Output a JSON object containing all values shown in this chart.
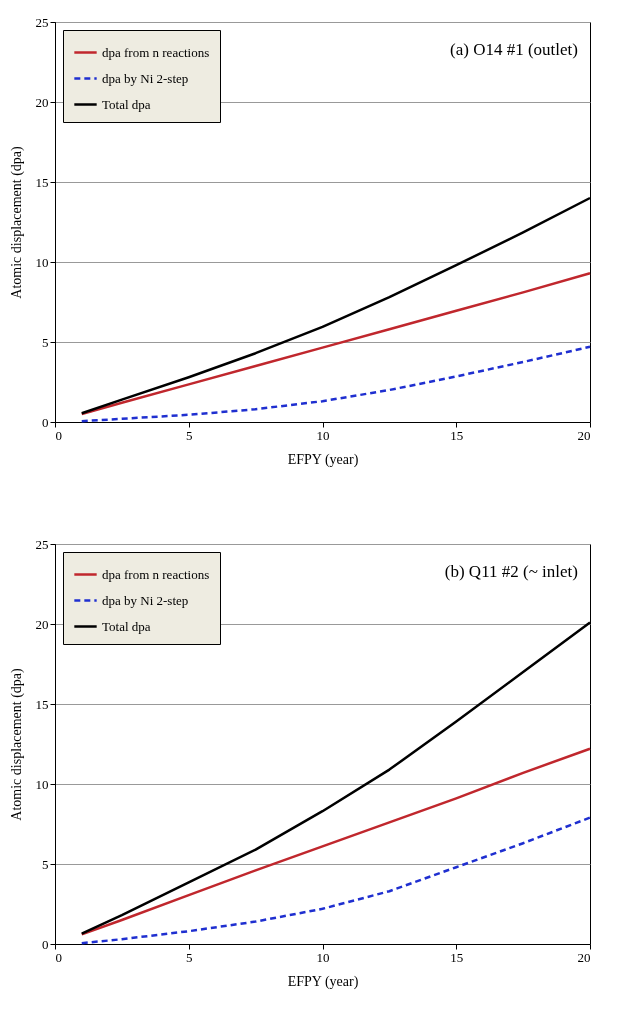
{
  "chart_data": [
    {
      "type": "line",
      "x": [
        1,
        2.5,
        5,
        7.5,
        10,
        12.5,
        15,
        17.5,
        20
      ],
      "xlim": [
        0,
        20
      ],
      "xticks": [
        0,
        5,
        10,
        15,
        20
      ],
      "ylim": [
        0,
        25
      ],
      "yticks": [
        0,
        5,
        10,
        15,
        20,
        25
      ],
      "xlabel": "EFPY (year)",
      "ylabel": "Atomic displacement (dpa)",
      "annotations": [
        "(a) O14 #1 (outlet)"
      ],
      "grid": "y",
      "legend": "top left",
      "series": [
        {
          "name": "dpa from n reactions",
          "color": "#c0272d",
          "line_style": "solid",
          "values": [
            0.5,
            1.2,
            2.35,
            3.5,
            4.65,
            5.8,
            6.95,
            8.1,
            9.3
          ]
        },
        {
          "name": "dpa by Ni 2-step",
          "color": "#1f2fd0",
          "line_style": "dashed",
          "values": [
            0.05,
            0.2,
            0.45,
            0.8,
            1.3,
            2.0,
            2.85,
            3.75,
            4.7
          ]
        },
        {
          "name": "Total dpa",
          "color": "#000000",
          "line_style": "solid",
          "values": [
            0.55,
            1.4,
            2.8,
            4.3,
            5.95,
            7.8,
            9.8,
            11.85,
            14.0
          ]
        }
      ]
    },
    {
      "type": "line",
      "x": [
        1,
        2.5,
        5,
        7.5,
        10,
        12.5,
        15,
        17.5,
        20
      ],
      "xlim": [
        0,
        20
      ],
      "xticks": [
        0,
        5,
        10,
        15,
        20
      ],
      "ylim": [
        0,
        25
      ],
      "yticks": [
        0,
        5,
        10,
        15,
        20,
        25
      ],
      "xlabel": "EFPY (year)",
      "ylabel": "Atomic displacement (dpa)",
      "annotations": [
        "(b) Q11 #2 (~ inlet)"
      ],
      "grid": "y",
      "legend": "top left",
      "series": [
        {
          "name": "dpa from n reactions",
          "color": "#c0272d",
          "line_style": "solid",
          "values": [
            0.6,
            1.5,
            3.05,
            4.6,
            6.1,
            7.6,
            9.1,
            10.7,
            12.2
          ]
        },
        {
          "name": "dpa by Ni 2-step",
          "color": "#1f2fd0",
          "line_style": "dashed",
          "values": [
            0.05,
            0.3,
            0.8,
            1.4,
            2.2,
            3.3,
            4.8,
            6.3,
            7.9
          ]
        },
        {
          "name": "Total dpa",
          "color": "#000000",
          "line_style": "solid",
          "values": [
            0.65,
            1.8,
            3.85,
            5.9,
            8.3,
            10.9,
            13.9,
            17.0,
            20.1
          ]
        }
      ]
    }
  ]
}
